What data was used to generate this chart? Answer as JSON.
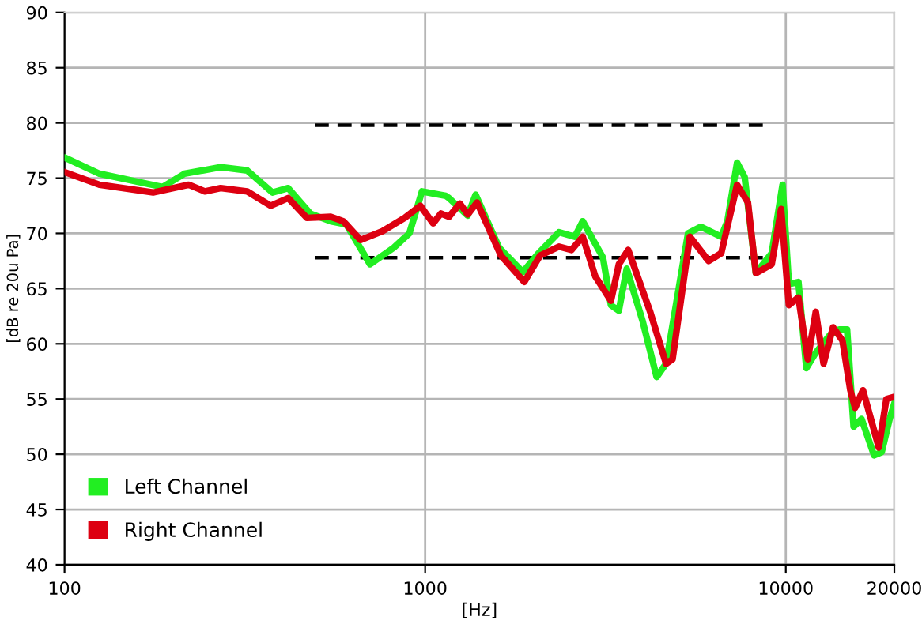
{
  "chart_data": {
    "type": "line",
    "xlabel": "[Hz]",
    "ylabel": "[dB re 20u Pa]",
    "log": "x",
    "xlim": [
      100,
      20000
    ],
    "ylim": [
      40,
      90
    ],
    "xticks": [
      100,
      1000,
      10000,
      20000
    ],
    "yticks": [
      40,
      45,
      50,
      55,
      60,
      65,
      70,
      75,
      80,
      85,
      90
    ],
    "grid": true,
    "legend": "bottom left",
    "marker": "none",
    "line_style": "solid",
    "series": [
      {
        "name": "Left Channel",
        "color": "#22ee22",
        "x": [
          101,
          125,
          187,
          215,
          271,
          321,
          377,
          417,
          480,
          547,
          605,
          703,
          818,
          904,
          980,
          1140,
          1164,
          1312,
          1380,
          1604,
          1866,
          2062,
          2350,
          2600,
          2735,
          3113,
          3275,
          3444,
          3622,
          4006,
          4385,
          4656,
          5358,
          5808,
          6622,
          6887,
          7328,
          7691,
          8260,
          9140,
          9795,
          10200,
          10840,
          11400,
          12110,
          13250,
          14070,
          14790,
          15420,
          16220,
          17570,
          18450,
          19410,
          20000
        ],
        "values": [
          76.8,
          75.4,
          74.2,
          75.4,
          76.0,
          75.7,
          73.7,
          74.1,
          71.8,
          71.1,
          70.8,
          67.2,
          68.7,
          70.0,
          73.8,
          73.4,
          73.2,
          71.6,
          73.5,
          68.7,
          66.5,
          68.2,
          70.1,
          69.7,
          71.1,
          67.8,
          63.5,
          63.0,
          66.8,
          62.1,
          57.0,
          58.2,
          70.0,
          70.6,
          69.7,
          71.1,
          76.4,
          75.1,
          66.4,
          68.2,
          74.4,
          65.4,
          65.6,
          57.8,
          59.2,
          60.8,
          61.3,
          61.3,
          52.5,
          53.2,
          49.9,
          50.2,
          53.2,
          54.6
        ]
      },
      {
        "name": "Right Channel",
        "color": "#dd0011",
        "x": [
          101,
          125,
          176,
          221,
          245,
          271,
          321,
          373,
          417,
          470,
          547,
          593,
          662,
          762,
          877,
          970,
          1052,
          1106,
          1164,
          1248,
          1312,
          1393,
          1622,
          1884,
          2084,
          2350,
          2547,
          2735,
          2964,
          3275,
          3444,
          3656,
          4207,
          4656,
          4853,
          5420,
          6109,
          6622,
          7328,
          7852,
          8260,
          9140,
          9705,
          10200,
          10840,
          11510,
          12110,
          12730,
          13520,
          14360,
          15100,
          15570,
          16370,
          18110,
          19010,
          20000
        ],
        "values": [
          75.5,
          74.4,
          73.7,
          74.4,
          73.8,
          74.1,
          73.8,
          72.5,
          73.2,
          71.4,
          71.5,
          71.1,
          69.4,
          70.2,
          71.4,
          72.5,
          70.9,
          71.8,
          71.5,
          72.7,
          71.7,
          72.8,
          68.0,
          65.6,
          68.0,
          68.8,
          68.5,
          69.7,
          66.1,
          63.9,
          67.2,
          68.5,
          62.9,
          58.2,
          58.6,
          69.7,
          67.5,
          68.2,
          74.4,
          72.8,
          66.4,
          67.2,
          72.2,
          63.5,
          64.2,
          58.6,
          62.9,
          58.2,
          61.5,
          60.3,
          55.8,
          54.2,
          55.8,
          50.6,
          55.0,
          55.2
        ]
      },
      {
        "color": "#000000",
        "line_style": "dashed",
        "x": [
          494,
          8770
        ],
        "values": [
          79.8,
          79.8
        ]
      },
      {
        "color": "#000000",
        "line_style": "dashed",
        "x": [
          494,
          8770
        ],
        "values": [
          67.8,
          67.8
        ]
      }
    ]
  }
}
